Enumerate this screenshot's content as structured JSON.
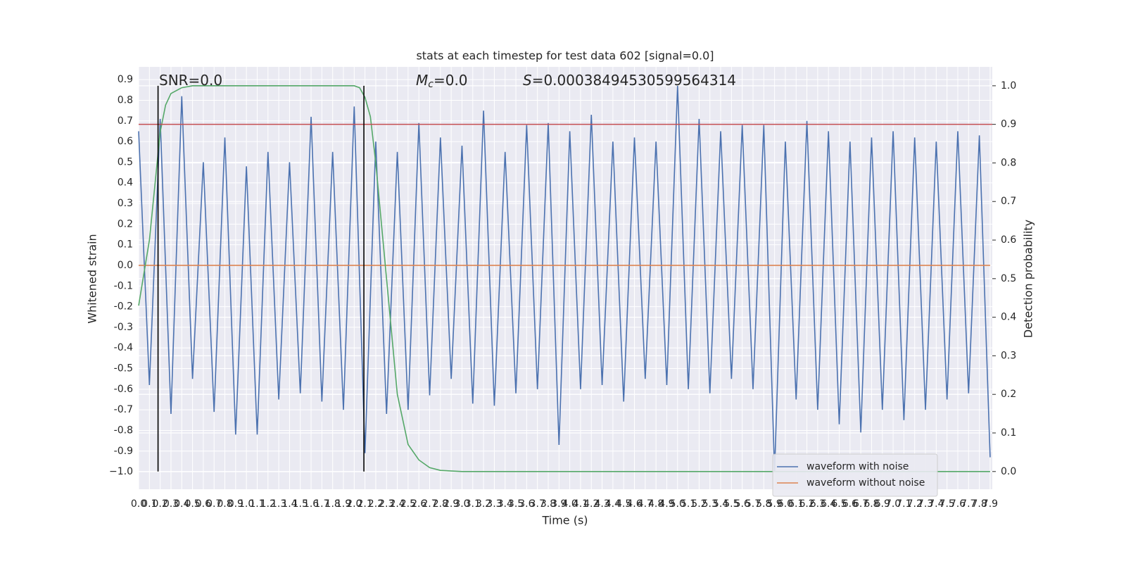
{
  "chart_data": {
    "type": "line",
    "title": "stats at each timestep for test data 602 [signal=0.0]",
    "xlabel": "Time (s)",
    "ylabel": "Whitened strain",
    "y2label": "Detection probability",
    "annotations": [
      {
        "text": "SNR=0.0"
      },
      {
        "symbol": "M",
        "sub": "c",
        "text": "=0.0"
      },
      {
        "symbol": "S",
        "text": "=0.00038494530599564314"
      }
    ],
    "x": [
      0,
      0.1,
      0.2,
      0.3,
      0.4,
      0.5,
      0.6,
      0.7,
      0.8,
      0.9,
      1,
      1.1,
      1.2,
      1.3,
      1.4,
      1.5,
      1.6,
      1.7,
      1.8,
      1.9,
      2,
      2.1,
      2.2,
      2.3,
      2.4,
      2.5,
      2.6,
      2.7,
      2.8,
      2.9,
      3,
      3.1,
      3.2,
      3.3,
      3.4,
      3.5,
      3.6,
      3.7,
      3.8,
      3.9,
      4,
      4.1,
      4.2,
      4.3,
      4.4,
      4.5,
      4.6,
      4.7,
      4.8,
      4.9,
      5,
      5.1,
      5.2,
      5.3,
      5.4,
      5.5,
      5.6,
      5.7,
      5.8,
      5.9,
      6,
      6.1,
      6.2,
      6.3,
      6.4,
      6.5,
      6.6,
      6.7,
      6.8,
      6.9,
      7,
      7.1,
      7.2,
      7.3,
      7.4,
      7.5,
      7.6,
      7.7,
      7.8,
      7.9
    ],
    "series": [
      {
        "name": "waveform with noise",
        "color": "#4c72b0",
        "values": [
          0.65,
          -0.58,
          0.71,
          -0.72,
          0.82,
          -0.55,
          0.5,
          -0.71,
          0.62,
          -0.82,
          0.48,
          -0.82,
          0.55,
          -0.65,
          0.5,
          -0.62,
          0.72,
          -0.66,
          0.55,
          -0.7,
          0.77,
          -0.91,
          0.6,
          -0.72,
          0.55,
          -0.7,
          0.69,
          -0.63,
          0.62,
          -0.55,
          0.58,
          -0.67,
          0.75,
          -0.68,
          0.55,
          -0.62,
          0.68,
          -0.6,
          0.69,
          -0.87,
          0.65,
          -0.6,
          0.73,
          -0.58,
          0.6,
          -0.66,
          0.62,
          -0.55,
          0.6,
          -0.58,
          0.87,
          -0.6,
          0.71,
          -0.62,
          0.65,
          -0.55,
          0.68,
          -0.6,
          0.68,
          -1.0,
          0.6,
          -0.65,
          0.7,
          -0.7,
          0.65,
          -0.77,
          0.6,
          -0.81,
          0.62,
          -0.7,
          0.65,
          -0.75,
          0.62,
          -0.7,
          0.6,
          -0.65,
          0.65,
          -0.62,
          0.63,
          -0.93
        ]
      },
      {
        "name": "waveform without noise",
        "color": "#dd8452",
        "values": [
          0,
          0,
          0,
          0,
          0,
          0,
          0,
          0,
          0,
          0,
          0,
          0,
          0,
          0,
          0,
          0,
          0,
          0,
          0,
          0,
          0,
          0,
          0,
          0,
          0,
          0,
          0,
          0,
          0,
          0,
          0,
          0,
          0,
          0,
          0,
          0,
          0,
          0,
          0,
          0,
          0,
          0,
          0,
          0,
          0,
          0,
          0,
          0,
          0,
          0,
          0,
          0,
          0,
          0,
          0,
          0,
          0,
          0,
          0,
          0,
          0,
          0,
          0,
          0,
          0,
          0,
          0,
          0,
          0,
          0,
          0,
          0,
          0,
          0,
          0,
          0,
          0,
          0,
          0,
          0
        ]
      },
      {
        "axis": "y2",
        "color": "#55a868",
        "x": [
          0,
          0.1,
          0.2,
          0.25,
          0.3,
          0.4,
          0.5,
          0.6,
          0.8,
          1,
          1.5,
          2,
          2.05,
          2.1,
          2.15,
          2.2,
          2.3,
          2.4,
          2.5,
          2.6,
          2.7,
          2.8,
          3,
          4,
          5,
          6,
          7,
          7.9
        ],
        "values": [
          0.43,
          0.6,
          0.88,
          0.95,
          0.98,
          0.995,
          1,
          1,
          1,
          1,
          1,
          1,
          0.995,
          0.97,
          0.92,
          0.8,
          0.5,
          0.2,
          0.07,
          0.03,
          0.01,
          0.003,
          0,
          0,
          0,
          0,
          0,
          0
        ]
      }
    ],
    "vlines": [
      0.18,
      2.09
    ],
    "vline_color": "#000000",
    "hline_y2": 0.9,
    "hline_color": "#c44e52",
    "xlim": [
      0,
      7.92
    ],
    "ylim": [
      -1.085,
      0.962
    ],
    "y2lim": [
      -0.046,
      1.049
    ],
    "xticks": [
      {
        "value": 0,
        "label": "0.0"
      },
      0.1,
      0.2,
      0.3,
      0.4,
      0.5,
      0.6,
      0.7,
      0.8,
      0.9,
      {
        "value": 1,
        "label": "1.0"
      },
      1.1,
      1.2,
      1.3,
      1.4,
      1.5,
      1.6,
      1.7,
      1.8,
      1.9,
      {
        "value": 2,
        "label": "2.0"
      },
      2.1,
      2.2,
      2.3,
      2.4,
      2.5,
      2.6,
      2.7,
      2.8,
      2.9,
      {
        "value": 3,
        "label": "3.0"
      },
      3.1,
      3.2,
      3.3,
      3.4,
      3.5,
      3.6,
      3.7,
      3.8,
      3.9,
      {
        "value": 4,
        "label": "4.0"
      },
      4.1,
      4.2,
      4.3,
      4.4,
      4.5,
      4.6,
      4.7,
      4.8,
      4.9,
      {
        "value": 5,
        "label": "5.0"
      },
      5.1,
      5.2,
      5.3,
      5.4,
      5.5,
      5.6,
      5.7,
      5.8,
      5.9,
      {
        "value": 6,
        "label": "6.0"
      },
      6.1,
      6.2,
      6.3,
      6.4,
      6.5,
      6.6,
      6.7,
      6.8,
      6.9,
      {
        "value": 7,
        "label": "7.0"
      },
      7.1,
      7.2,
      7.3,
      7.4,
      7.5,
      7.6,
      7.7,
      7.8,
      7.9
    ],
    "yticks": [
      0.9,
      0.8,
      0.7,
      0.6,
      0.5,
      0.4,
      0.3,
      0.2,
      0.1,
      {
        "value": 0,
        "label": "0.0"
      },
      -0.1,
      -0.2,
      -0.3,
      -0.4,
      -0.5,
      -0.6,
      -0.7,
      -0.8,
      -0.9,
      {
        "value": -1,
        "label": "−1.0"
      }
    ],
    "y2ticks": [
      {
        "value": 1,
        "label": "1.0"
      },
      0.9,
      0.8,
      0.7,
      0.6,
      0.5,
      0.4,
      0.3,
      0.2,
      0.1,
      {
        "value": 0,
        "label": "0.0"
      }
    ],
    "grid": true,
    "legend": "lower right",
    "background": "#eaeaf2"
  }
}
